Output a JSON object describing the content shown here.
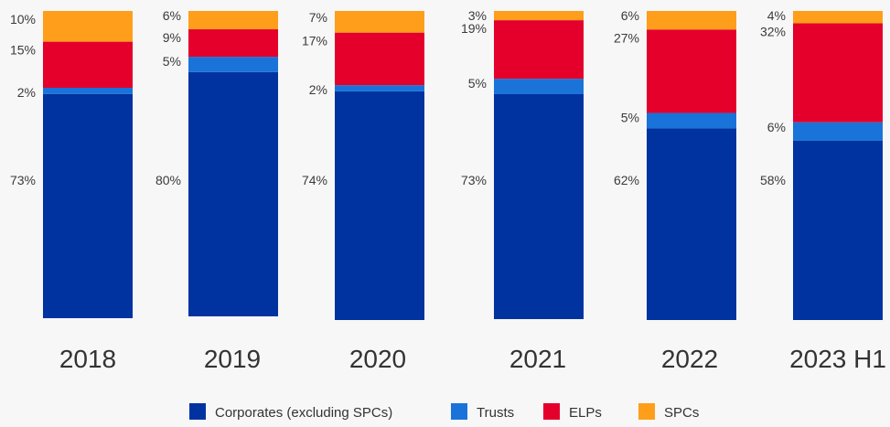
{
  "chart_data": {
    "type": "bar",
    "stacked": true,
    "normalized_percent": true,
    "categories": [
      "2018",
      "2019",
      "2020",
      "2021",
      "2022",
      "2023 H1"
    ],
    "series": [
      {
        "name": "Corporates (excluding SPCs)",
        "values": [
          73,
          80,
          74,
          73,
          62,
          58
        ],
        "color": "#0033a0"
      },
      {
        "name": "Trusts",
        "values": [
          2,
          5,
          2,
          5,
          5,
          6
        ],
        "color": "#1a73d9"
      },
      {
        "name": "ELPs",
        "values": [
          15,
          9,
          17,
          19,
          27,
          32
        ],
        "color": "#e4002b"
      },
      {
        "name": "SPCs",
        "values": [
          10,
          6,
          7,
          3,
          6,
          4
        ],
        "color": "#ff9e1b"
      }
    ],
    "labels": [
      {
        "category": "2018",
        "texts": [
          "73%",
          "2%",
          "15%",
          "10%"
        ]
      },
      {
        "category": "2019",
        "texts": [
          "80%",
          "5%",
          "9%",
          "6%"
        ]
      },
      {
        "category": "2020",
        "texts": [
          "74%",
          "2%",
          "17%",
          "7%"
        ]
      },
      {
        "category": "2021",
        "texts": [
          "73%",
          "5%",
          "19%",
          "3%"
        ]
      },
      {
        "category": "2022",
        "texts": [
          "62%",
          "5%",
          "27%",
          "6%"
        ]
      },
      {
        "category": "2023 H1",
        "texts": [
          "58%",
          "6%",
          "32%",
          "4%"
        ]
      }
    ],
    "legend_position": "bottom-center",
    "grid": false
  }
}
